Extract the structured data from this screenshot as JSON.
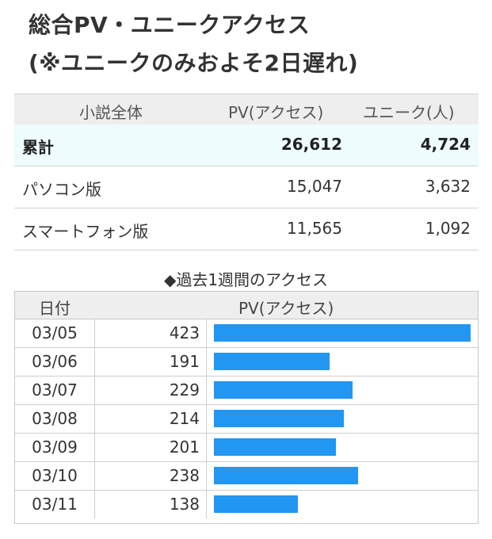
{
  "title_line1": "総合PV・ユニークアクセス",
  "title_line2": "(※ユニークのみおよそ2日遅れ)",
  "summary": {
    "headers": [
      "小説全体",
      "PV(アクセス)",
      "ユニーク(人)"
    ],
    "rows": [
      {
        "label": "累計",
        "pv": "26,612",
        "unique": "4,724"
      },
      {
        "label": "パソコン版",
        "pv": "15,047",
        "unique": "3,632"
      },
      {
        "label": "スマートフォン版",
        "pv": "11,565",
        "unique": "1,092"
      }
    ]
  },
  "weekly": {
    "title": "◆過去1週間のアクセス",
    "header_date": "日付",
    "header_pv": "PV(アクセス)",
    "bar_color": "#2196f3",
    "max_value": 423,
    "rows": [
      {
        "date": "03/05",
        "pv": "423",
        "value": 423
      },
      {
        "date": "03/06",
        "pv": "191",
        "value": 191
      },
      {
        "date": "03/07",
        "pv": "229",
        "value": 229
      },
      {
        "date": "03/08",
        "pv": "214",
        "value": 214
      },
      {
        "date": "03/09",
        "pv": "201",
        "value": 201
      },
      {
        "date": "03/10",
        "pv": "238",
        "value": 238
      },
      {
        "date": "03/11",
        "pv": "138",
        "value": 138
      }
    ]
  }
}
